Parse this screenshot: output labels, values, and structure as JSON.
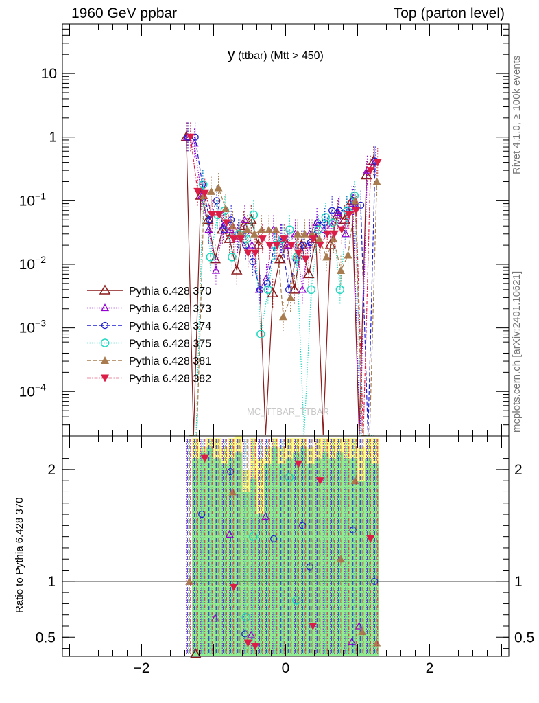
{
  "header": {
    "left": "1960 GeV ppbar",
    "right": "Top (parton level)"
  },
  "title": {
    "main": "y",
    "sub": "(ttbar) (Mtt > 450)"
  },
  "side_labels": {
    "top": "Rivet 4.1.0, ≥ 100k events",
    "bottom": "mcplots.cern.ch [arXiv:2401.10621]"
  },
  "watermark": "MC_TTBAR_TTBAR",
  "ratio_ylabel": "Ratio to Pythia 6.428 370",
  "colors": {
    "p370": "#8b1a1a",
    "p373": "#9400d3",
    "p374": "#1e1ed0",
    "p375": "#20d8c0",
    "p381": "#a87c4f",
    "p382": "#dc1e46",
    "band_green": "#90ee90",
    "band_yellow": "#ffff88"
  },
  "chart_data": {
    "type": "line",
    "xlim": [
      -3.1,
      3.1
    ],
    "main_ylim_log": [
      2e-05,
      60
    ],
    "ratio_ylim": [
      0.33,
      2.3
    ],
    "x_ticks": [
      {
        "v": -2,
        "label": "−2"
      },
      {
        "v": 0,
        "label": "0"
      },
      {
        "v": 2,
        "label": "2"
      }
    ],
    "main_y_ticks": [
      {
        "exp": 1,
        "label": "10"
      },
      {
        "exp": 0,
        "label": "1"
      },
      {
        "exp": -1,
        "label": "10",
        "sup": "−1"
      },
      {
        "exp": -2,
        "label": "10",
        "sup": "−2"
      },
      {
        "exp": -3,
        "label": "10",
        "sup": "−3"
      },
      {
        "exp": -4,
        "label": "10",
        "sup": "−4"
      }
    ],
    "ratio_y_ticks": [
      {
        "v": 0.5,
        "label": "0.5"
      },
      {
        "v": 1,
        "label": "1"
      },
      {
        "v": 2,
        "label": "2"
      }
    ],
    "x": [
      -1.35,
      -1.25,
      -1.15,
      -1.05,
      -0.95,
      -0.85,
      -0.75,
      -0.65,
      -0.55,
      -0.45,
      -0.35,
      -0.25,
      -0.15,
      -0.05,
      0.05,
      0.15,
      0.25,
      0.35,
      0.45,
      0.55,
      0.65,
      0.75,
      0.85,
      0.95,
      1.05,
      1.15,
      1.25
    ],
    "series": [
      {
        "name": "Pythia 6.428 370",
        "key": "p370",
        "marker": "triangle-open",
        "dash": "",
        "values": [
          1.0,
          null,
          0.12,
          0.05,
          0.012,
          0.035,
          0.025,
          0.008,
          0.04,
          0.05,
          0.02,
          null,
          0.0035,
          0.012,
          0.02,
          0.004,
          0.02,
          0.007,
          0.025,
          null,
          0.02,
          0.06,
          0.05,
          0.1,
          null,
          0.25,
          0.42
        ]
      },
      {
        "name": "Pythia 6.428 373",
        "key": "p373",
        "marker": "triangle-open-small",
        "dash": "1.5,2",
        "values": [
          1.0,
          0.8,
          0.12,
          0.035,
          0.008,
          0.04,
          0.035,
          0.025,
          0.05,
          0.02,
          0.004,
          0.006,
          0.035,
          0.025,
          0.02,
          0.03,
          0.004,
          0.03,
          0.045,
          0.035,
          0.04,
          0.065,
          0.03,
          0.09,
          null,
          0.3,
          0.4
        ]
      },
      {
        "name": "Pythia 6.428 374",
        "key": "p374",
        "marker": "circle-open",
        "dash": "6,3",
        "values": [
          1.0,
          1.0,
          0.18,
          0.05,
          0.1,
          0.035,
          0.05,
          0.03,
          0.02,
          0.011,
          0.004,
          0.005,
          0.02,
          0.025,
          0.004,
          0.012,
          0.02,
          0.022,
          0.045,
          0.045,
          0.07,
          0.07,
          0.07,
          0.1,
          0.085,
          null,
          0.42
        ]
      },
      {
        "name": "Pythia 6.428 375",
        "key": "p375",
        "marker": "circle-open-big",
        "dash": "1.5,2",
        "values": [
          null,
          null,
          0.18,
          0.013,
          0.06,
          0.07,
          0.013,
          0.03,
          0.025,
          0.06,
          0.0008,
          0.004,
          0.02,
          0.025,
          0.035,
          0.013,
          null,
          0.004,
          0.035,
          0.055,
          0.045,
          0.004,
          0.07,
          0.12,
          null,
          null,
          null
        ]
      },
      {
        "name": "Pythia 6.428 381",
        "key": "p381",
        "marker": "triangle-full",
        "dash": "6,3",
        "values": [
          null,
          null,
          0.12,
          0.14,
          0.16,
          0.075,
          0.04,
          0.03,
          0.035,
          0.03,
          0.035,
          0.035,
          0.035,
          0.0015,
          0.003,
          0.03,
          0.03,
          0.03,
          0.025,
          0.013,
          0.025,
          0.008,
          0.014,
          0.1,
          null,
          null,
          0.2
        ]
      },
      {
        "name": "Pythia 6.428 382",
        "key": "p382",
        "marker": "triangle-down-full",
        "dash": "5,2,1.5,2",
        "values": [
          1.0,
          0.14,
          0.13,
          0.06,
          0.06,
          0.045,
          0.025,
          0.025,
          0.015,
          0.015,
          0.025,
          0.02,
          0.02,
          0.025,
          0.02,
          0.015,
          0.012,
          0.025,
          0.02,
          0.03,
          0.03,
          0.035,
          0.06,
          0.07,
          null,
          0.3,
          0.4
        ]
      }
    ],
    "ratio_series": [
      {
        "key": "p373",
        "values": [
          null,
          null,
          null,
          null,
          0.67,
          null,
          1.42,
          null,
          null,
          0.52,
          null,
          1.58,
          null,
          null,
          null,
          null,
          null,
          null,
          null,
          null,
          null,
          null,
          null,
          0.46,
          0.6,
          null,
          null
        ]
      },
      {
        "key": "p374",
        "values": [
          null,
          null,
          1.6,
          null,
          null,
          null,
          1.98,
          null,
          0.53,
          null,
          null,
          null,
          1.38,
          null,
          null,
          null,
          1.5,
          1.13,
          null,
          null,
          null,
          null,
          null,
          1.46,
          null,
          null,
          1.0
        ]
      },
      {
        "key": "p375",
        "values": [
          null,
          null,
          null,
          null,
          null,
          null,
          null,
          null,
          0.68,
          1.4,
          null,
          null,
          null,
          null,
          1.93,
          0.83,
          null,
          null,
          null,
          null,
          null,
          null,
          null,
          null,
          null,
          null,
          null
        ]
      },
      {
        "key": "p381",
        "values": [
          1.0,
          null,
          null,
          null,
          null,
          null,
          1.8,
          null,
          null,
          null,
          null,
          null,
          null,
          null,
          null,
          null,
          null,
          null,
          null,
          null,
          null,
          1.2,
          null,
          1.9,
          0.55,
          null,
          0.45
        ]
      },
      {
        "key": "p382",
        "values": [
          null,
          null,
          2.1,
          null,
          null,
          null,
          0.95,
          null,
          0.45,
          0.42,
          null,
          null,
          null,
          null,
          null,
          2.05,
          null,
          0.6,
          1.9,
          null,
          null,
          null,
          null,
          null,
          null,
          1.38,
          null
        ]
      }
    ],
    "bands": {
      "yellow_top": [
        null,
        2.28,
        2.2,
        2.28,
        2.28,
        2.2,
        2.28,
        2.3,
        2.0,
        2.28,
        2.1,
        2.2,
        2.28,
        2.2,
        2.28,
        2.28,
        2.28,
        2.2,
        2.28,
        2.28,
        2.28,
        2.28,
        2.28,
        2.28,
        2.2,
        2.28,
        2.28
      ],
      "green_top": [
        null,
        2.1,
        2.15,
        2.2,
        2.1,
        2.05,
        2.1,
        2.15,
        1.8,
        1.92,
        1.6,
        2.05,
        2.2,
        2.05,
        2.1,
        2.15,
        2.2,
        2.05,
        2.1,
        2.15,
        2.1,
        2.15,
        2.1,
        2.1,
        1.9,
        2.1,
        2.05
      ]
    }
  }
}
